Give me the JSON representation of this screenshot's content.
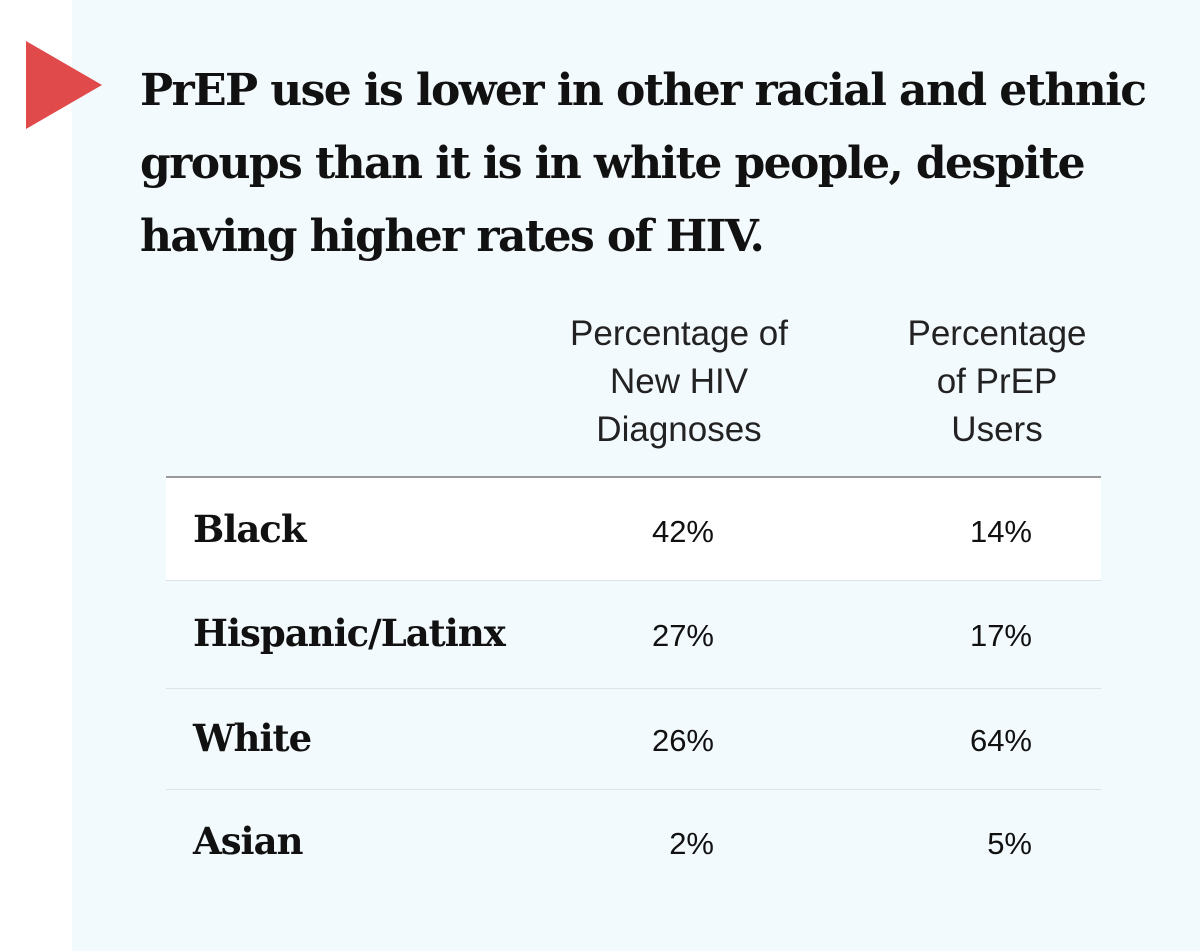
{
  "title": "PrEP use is lower in other racial and ethnic groups than it is in white people, despite having higher rates of HIV.",
  "chart_data": {
    "type": "table",
    "columns": [
      "Percentage of\nNew HIV\nDiagnoses",
      "Percentage\nof PrEP\nUsers"
    ],
    "rows": [
      {
        "label": "Black",
        "values": [
          "42%",
          "14%"
        ]
      },
      {
        "label": "Hispanic/Latinx",
        "values": [
          "27%",
          "17%"
        ]
      },
      {
        "label": "White",
        "values": [
          "26%",
          "64%"
        ]
      },
      {
        "label": "Asian",
        "values": [
          "2%",
          "5%"
        ]
      }
    ]
  },
  "colors": {
    "accent": "#e04a4a",
    "background": "#f3fafd"
  },
  "icons": {
    "marker": "triangle-right-icon"
  }
}
